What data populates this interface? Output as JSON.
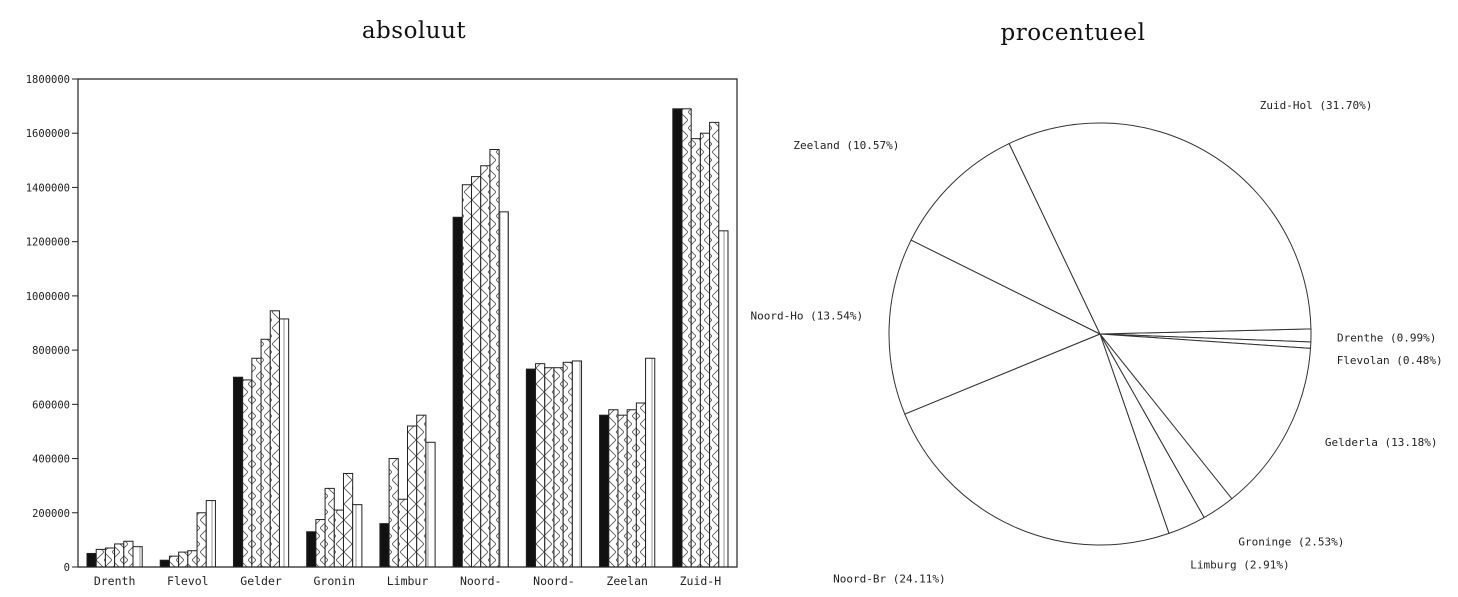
{
  "chart_data": [
    {
      "type": "bar",
      "title": "absoluut",
      "xlabel": "",
      "ylabel": "",
      "ylim": [
        0,
        1800000
      ],
      "ytick_labels": [
        "0",
        "200000",
        "400000",
        "600000",
        "800000",
        "1000000",
        "1200000",
        "1400000",
        "1600000",
        "1800000"
      ],
      "categories": [
        "Drenth",
        "Flevol",
        "Gelder",
        "Gronin",
        "Limbur",
        "Noord-",
        "Noord-",
        "Zeelan",
        "Zuid-H"
      ],
      "series": [
        {
          "pattern": "solid",
          "values": [
            50000,
            25000,
            700000,
            130000,
            160000,
            1290000,
            730000,
            560000,
            1690000
          ]
        },
        {
          "pattern": "hatch",
          "values": [
            65000,
            40000,
            690000,
            175000,
            400000,
            1410000,
            750000,
            580000,
            1690000
          ]
        },
        {
          "pattern": "hatch",
          "values": [
            70000,
            55000,
            770000,
            290000,
            250000,
            1440000,
            735000,
            560000,
            1580000
          ]
        },
        {
          "pattern": "hatch",
          "values": [
            85000,
            60000,
            840000,
            210000,
            520000,
            1480000,
            735000,
            580000,
            1600000
          ]
        },
        {
          "pattern": "hatch",
          "values": [
            95000,
            200000,
            945000,
            345000,
            560000,
            1540000,
            755000,
            605000,
            1640000
          ]
        },
        {
          "pattern": "hatch",
          "values": [
            75000,
            245000,
            915000,
            230000,
            460000,
            1310000,
            760000,
            770000,
            1240000
          ]
        }
      ],
      "grid": false
    },
    {
      "type": "pie",
      "title": "procentueel",
      "slices": [
        {
          "label": "Drenthe (0.99%)",
          "value": 0.99
        },
        {
          "label": "Flevolan (0.48%)",
          "value": 0.48
        },
        {
          "label": "Gelderla (13.18%)",
          "value": 13.18
        },
        {
          "label": "Groninge (2.53%)",
          "value": 2.53
        },
        {
          "label": "Limburg (2.91%)",
          "value": 2.91
        },
        {
          "label": "Noord-Br (24.11%)",
          "value": 24.11
        },
        {
          "label": "Noord-Ho (13.54%)",
          "value": 13.54
        },
        {
          "label": "Zeeland (10.57%)",
          "value": 10.57
        },
        {
          "label": "Zuid-Hol (31.70%)",
          "value": 31.7
        }
      ]
    }
  ]
}
